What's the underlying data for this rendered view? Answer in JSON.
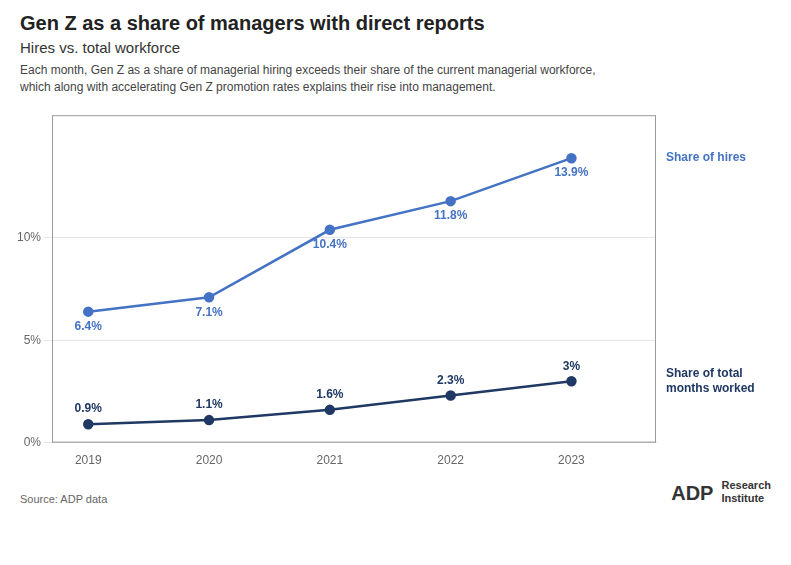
{
  "chart_data": {
    "type": "line",
    "title": "Gen Z as a share of managers with direct reports",
    "subtitle": "Hires vs. total workforce",
    "description": "Each month, Gen Z as a share of managerial hiring exceeds their share of the current managerial workforce,\nwhich along with accelerating Gen Z promotion rates explains their rise into management.",
    "source": "Source: ADP data",
    "annotations": [
      "ADP",
      "Research\nInstitute"
    ],
    "x": [
      2019,
      2020,
      2021,
      2022,
      2023
    ],
    "xlim": [
      2018.7,
      2023.7
    ],
    "xticks": [
      2019,
      2020,
      2021,
      2022,
      2023
    ],
    "ylim": [
      0,
      16
    ],
    "yticks": [
      {
        "value": 0,
        "label": "0%"
      },
      {
        "value": 5,
        "label": "5%"
      },
      {
        "value": 10,
        "label": "10%"
      }
    ],
    "grid": "y",
    "marker": "circle",
    "data_labels": true,
    "series": [
      {
        "name": "Share of hires",
        "color": "#4472C4",
        "values": [
          6.4,
          7.1,
          10.4,
          11.8,
          13.9
        ],
        "value_labels": [
          "6.4%",
          "7.1%",
          "10.4%",
          "11.8%",
          "13.9%"
        ]
      },
      {
        "name": "Share of total\nmonths worked",
        "color": "#1F3864",
        "values": [
          0.9,
          1.1,
          1.6,
          2.3,
          3.0
        ],
        "value_labels": [
          "0.9%",
          "1.1%",
          "1.6%",
          "2.3%",
          "3%"
        ]
      }
    ]
  }
}
